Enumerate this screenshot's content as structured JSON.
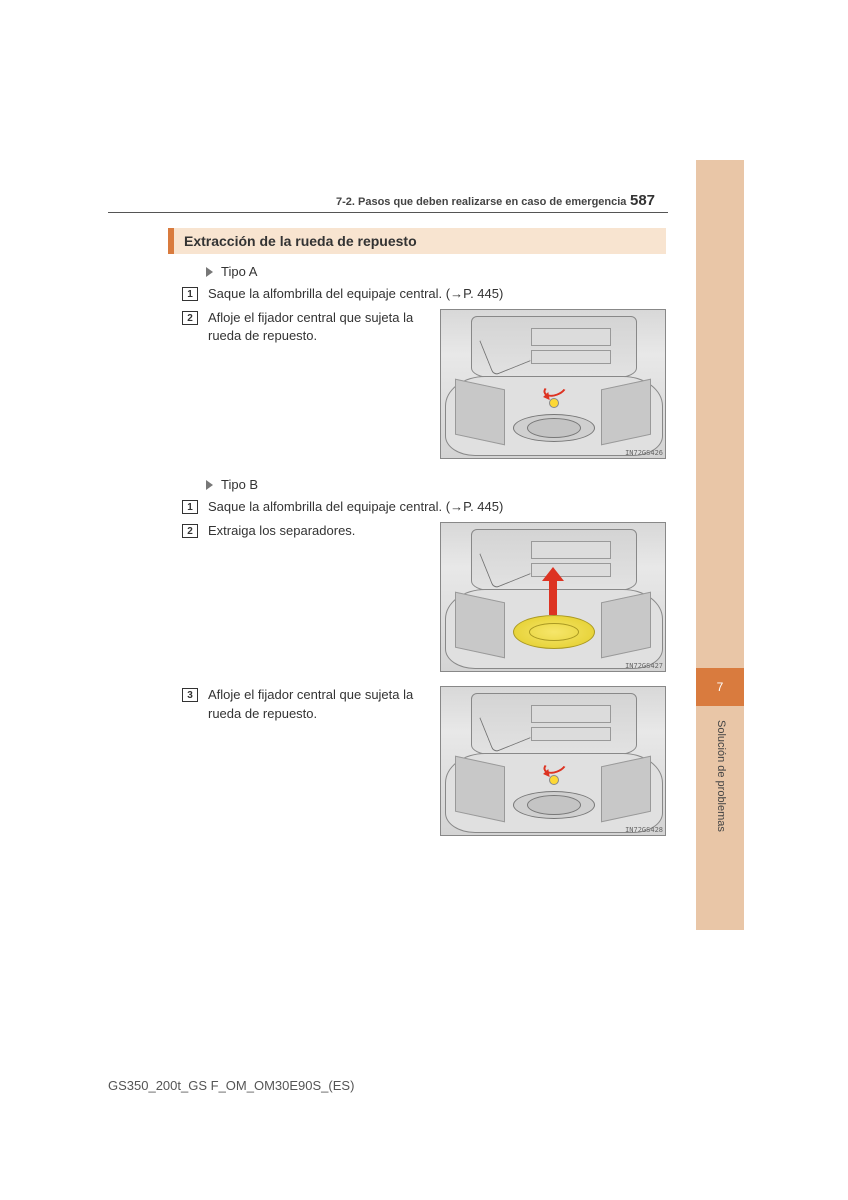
{
  "page": {
    "breadcrumb": "7-2. Pasos que deben realizarse en caso de emergencia",
    "number": "587"
  },
  "heading": "Extracción de la rueda de repuesto",
  "tipoA": {
    "label": "Tipo A",
    "step1": "Saque la alfombrilla del equipaje central. (→P. 445)",
    "step2": "Afloje el fijador central que sujeta la rueda de repuesto.",
    "fig_tag": "IN72GS426"
  },
  "tipoB": {
    "label": "Tipo B",
    "step1": "Saque la alfombrilla del equipaje central. (→P. 445)",
    "step2": "Extraiga los separadores.",
    "step3": "Afloje el fijador central que sujeta la rueda de repuesto.",
    "fig2_tag": "IN72GS427",
    "fig3_tag": "IN72GS428"
  },
  "side_tab": {
    "chapter": "7",
    "label": "Solución de problemas"
  },
  "footer": "GS350_200t_GS F_OM_OM30E90S_(ES)",
  "colors": {
    "accent_light": "#e9c6a7",
    "accent_dark": "#d97b3e",
    "heading_bg": "#f8e4d0"
  }
}
